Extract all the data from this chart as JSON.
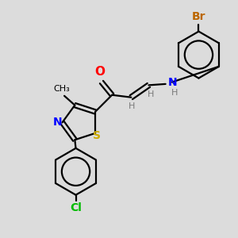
{
  "background_color": "#dcdcdc",
  "atom_colors": {
    "C": "#000000",
    "H": "#7a7a7a",
    "N": "#0000ff",
    "O": "#ff0000",
    "S": "#ccaa00",
    "Cl": "#00bb00",
    "Br": "#bb6600"
  },
  "figsize": [
    3.0,
    3.0
  ],
  "dpi": 100
}
